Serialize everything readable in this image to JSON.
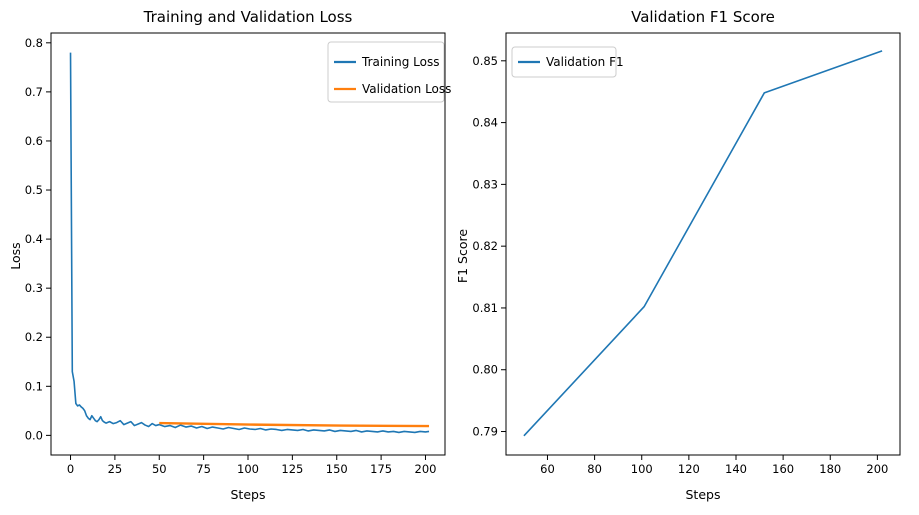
{
  "chart_data": [
    {
      "type": "line",
      "title": "Training and Validation Loss",
      "xlabel": "Steps",
      "ylabel": "Loss",
      "xlim": [
        -11,
        211
      ],
      "ylim": [
        -0.04,
        0.82
      ],
      "xticks": [
        0,
        25,
        50,
        75,
        100,
        125,
        150,
        175,
        200
      ],
      "yticks": [
        0.0,
        0.1,
        0.2,
        0.3,
        0.4,
        0.5,
        0.6,
        0.7,
        0.8
      ],
      "ytick_labels": [
        "0.0",
        "0.1",
        "0.2",
        "0.3",
        "0.4",
        "0.5",
        "0.6",
        "0.7",
        "0.8"
      ],
      "legend_position": "top-right",
      "series": [
        {
          "name": "Training Loss",
          "color": "#1f77b4",
          "x": [
            0,
            1,
            2,
            3,
            4,
            5,
            6,
            7,
            8,
            9,
            10,
            11,
            12,
            13,
            14,
            15,
            16,
            17,
            18,
            19,
            20,
            22,
            24,
            26,
            28,
            30,
            32,
            34,
            36,
            38,
            40,
            42,
            44,
            46,
            48,
            50,
            53,
            56,
            59,
            62,
            65,
            68,
            71,
            74,
            77,
            80,
            83,
            86,
            89,
            92,
            95,
            98,
            101,
            104,
            107,
            110,
            113,
            116,
            119,
            122,
            125,
            128,
            131,
            134,
            137,
            140,
            143,
            146,
            149,
            152,
            155,
            158,
            161,
            164,
            167,
            170,
            173,
            176,
            179,
            182,
            185,
            188,
            191,
            194,
            197,
            200,
            202
          ],
          "y": [
            0.78,
            0.13,
            0.11,
            0.065,
            0.06,
            0.062,
            0.058,
            0.055,
            0.05,
            0.04,
            0.035,
            0.032,
            0.04,
            0.035,
            0.03,
            0.028,
            0.032,
            0.038,
            0.03,
            0.027,
            0.025,
            0.028,
            0.024,
            0.026,
            0.03,
            0.022,
            0.025,
            0.028,
            0.02,
            0.023,
            0.026,
            0.021,
            0.018,
            0.024,
            0.02,
            0.022,
            0.018,
            0.02,
            0.016,
            0.021,
            0.017,
            0.019,
            0.015,
            0.018,
            0.014,
            0.017,
            0.015,
            0.013,
            0.016,
            0.014,
            0.012,
            0.015,
            0.013,
            0.012,
            0.014,
            0.011,
            0.013,
            0.012,
            0.01,
            0.012,
            0.011,
            0.01,
            0.012,
            0.009,
            0.011,
            0.01,
            0.009,
            0.011,
            0.008,
            0.01,
            0.009,
            0.008,
            0.01,
            0.007,
            0.009,
            0.008,
            0.007,
            0.009,
            0.007,
            0.008,
            0.006,
            0.008,
            0.007,
            0.006,
            0.008,
            0.007,
            0.008
          ]
        },
        {
          "name": "Validation Loss",
          "color": "#ff7f0e",
          "x": [
            50,
            101,
            152,
            202
          ],
          "y": [
            0.025,
            0.022,
            0.02,
            0.019
          ]
        }
      ]
    },
    {
      "type": "line",
      "title": "Validation F1 Score",
      "xlabel": "Steps",
      "ylabel": "F1 Score",
      "xlim": [
        42.4,
        209.6
      ],
      "ylim": [
        0.7862,
        0.8545
      ],
      "xticks": [
        60,
        80,
        100,
        120,
        140,
        160,
        180,
        200
      ],
      "yticks": [
        0.79,
        0.8,
        0.81,
        0.82,
        0.83,
        0.84,
        0.85
      ],
      "ytick_labels": [
        "0.79",
        "0.80",
        "0.81",
        "0.82",
        "0.83",
        "0.84",
        "0.85"
      ],
      "legend_position": "top-left",
      "series": [
        {
          "name": "Validation F1",
          "color": "#1f77b4",
          "x": [
            50,
            101,
            152,
            202
          ],
          "y": [
            0.7893,
            0.8102,
            0.8448,
            0.8516
          ]
        }
      ]
    }
  ]
}
